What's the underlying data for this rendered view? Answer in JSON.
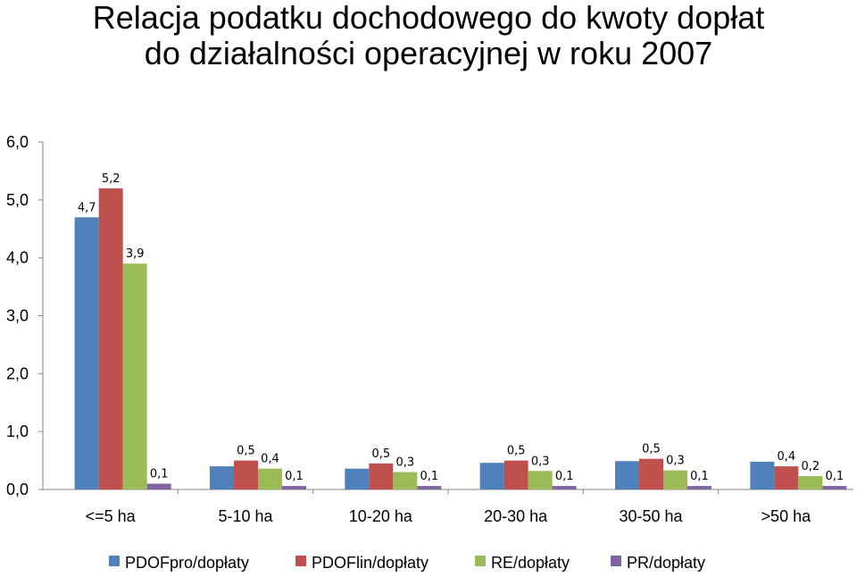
{
  "chart_data": {
    "type": "bar",
    "title_lines": [
      "Relacja podatku dochodowego do kwoty dopłat",
      "do działalności operacyjnej w roku 2007"
    ],
    "categories": [
      "<=5 ha",
      "5-10 ha",
      "10-20 ha",
      "20-30 ha",
      "30-50 ha",
      ">50 ha"
    ],
    "series": [
      {
        "name": "PDOFpro/dopłaty",
        "color": "#4F81BD",
        "values": [
          4.7,
          0.4,
          0.36,
          0.46,
          0.49,
          0.48
        ]
      },
      {
        "name": "PDOFlin/dopłaty",
        "color": "#C0504D",
        "values": [
          5.2,
          0.5,
          0.45,
          0.5,
          0.53,
          0.4
        ]
      },
      {
        "name": "RE/dopłaty",
        "color": "#9BBB59",
        "values": [
          3.9,
          0.36,
          0.3,
          0.32,
          0.33,
          0.23
        ]
      },
      {
        "name": "PR/dopłaty",
        "color": "#8064A2",
        "values": [
          0.1,
          0.06,
          0.06,
          0.06,
          0.06,
          0.06
        ]
      }
    ],
    "data_labels": [
      [
        "4,7",
        "5,2",
        "3,9",
        "0,1"
      ],
      [
        "",
        "0,5",
        "0,4",
        "0,1"
      ],
      [
        "",
        "0,5",
        "0,3",
        "0,1"
      ],
      [
        "",
        "0,5",
        "0,3",
        "0,1"
      ],
      [
        "",
        "0,5",
        "0,3",
        "0,1"
      ],
      [
        "",
        "0,4",
        "0,2",
        "0,1"
      ]
    ],
    "y_ticks": [
      0,
      1,
      2,
      3,
      4,
      5,
      6
    ],
    "y_tick_labels": [
      "0,0",
      "1,0",
      "2,0",
      "3,0",
      "4,0",
      "5,0",
      "6,0"
    ],
    "ylim": [
      0,
      6
    ],
    "xlabel": "",
    "ylabel": "",
    "grid": false,
    "legend_position": "bottom"
  }
}
